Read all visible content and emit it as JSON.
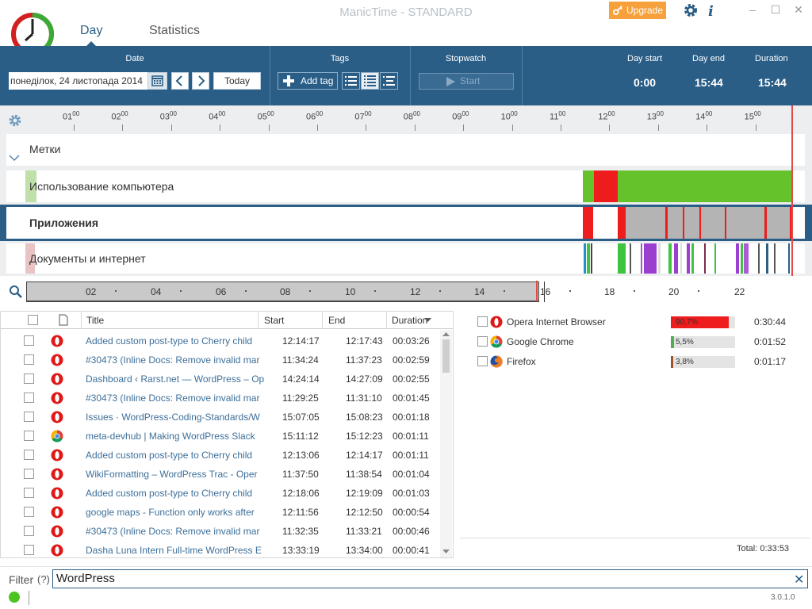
{
  "window": {
    "title": "ManicTime - STANDARD",
    "upgrade_label": "Upgrade"
  },
  "tabs": {
    "day": "Day",
    "statistics": "Statistics"
  },
  "toolbar": {
    "date_group": "Date",
    "date_value": "понеділок, 24 листопада 2014",
    "today_label": "Today",
    "tags_group": "Tags",
    "add_tag_label": "Add tag",
    "stopwatch_group": "Stopwatch",
    "start_label": "Start",
    "day_start_label": "Day start",
    "day_start_value": "0:00",
    "day_end_label": "Day end",
    "day_end_value": "15:44",
    "duration_label": "Duration",
    "duration_value": "15:44"
  },
  "timeline": {
    "hours": [
      "01",
      "02",
      "03",
      "04",
      "05",
      "06",
      "07",
      "08",
      "09",
      "10",
      "11",
      "12",
      "13",
      "14",
      "15"
    ],
    "hour_suffix": "00",
    "rows": {
      "tags": "Метки",
      "computer": "Использование компьютера",
      "apps": "Приложения",
      "docs": "Документы и интернет"
    }
  },
  "overview": {
    "labels": [
      "02",
      "04",
      "06",
      "08",
      "10",
      "12",
      "14",
      "16",
      "18",
      "20",
      "22"
    ]
  },
  "table": {
    "headers": {
      "title": "Title",
      "start": "Start",
      "end": "End",
      "duration": "Duration"
    },
    "rows": [
      {
        "icon": "opera-icon",
        "title": "Added custom post-type to Cherry child",
        "start": "12:14:17",
        "end": "12:17:43",
        "duration": "00:03:26"
      },
      {
        "icon": "opera-icon",
        "title": "#30473 (Inline Docs: Remove invalid mar",
        "start": "11:34:24",
        "end": "11:37:23",
        "duration": "00:02:59"
      },
      {
        "icon": "opera-icon",
        "title": "Dashboard ‹ Rarst.net — WordPress – Op",
        "start": "14:24:14",
        "end": "14:27:09",
        "duration": "00:02:55"
      },
      {
        "icon": "opera-icon",
        "title": "#30473 (Inline Docs: Remove invalid mar",
        "start": "11:29:25",
        "end": "11:31:10",
        "duration": "00:01:45"
      },
      {
        "icon": "opera-icon",
        "title": "Issues · WordPress-Coding-Standards/W",
        "start": "15:07:05",
        "end": "15:08:23",
        "duration": "00:01:18"
      },
      {
        "icon": "chrome-icon",
        "title": "meta-devhub | Making WordPress Slack",
        "start": "15:11:12",
        "end": "15:12:23",
        "duration": "00:01:11"
      },
      {
        "icon": "opera-icon",
        "title": "Added custom post-type to Cherry child",
        "start": "12:13:06",
        "end": "12:14:17",
        "duration": "00:01:11"
      },
      {
        "icon": "opera-icon",
        "title": "WikiFormatting – WordPress Trac - Oper",
        "start": "11:37:50",
        "end": "11:38:54",
        "duration": "00:01:04"
      },
      {
        "icon": "opera-icon",
        "title": "Added custom post-type to Cherry child",
        "start": "12:18:06",
        "end": "12:19:09",
        "duration": "00:01:03"
      },
      {
        "icon": "opera-icon",
        "title": "google maps - Function only works after",
        "start": "12:11:56",
        "end": "12:12:50",
        "duration": "00:00:54"
      },
      {
        "icon": "opera-icon",
        "title": "#30473 (Inline Docs: Remove invalid mar",
        "start": "11:32:35",
        "end": "11:33:21",
        "duration": "00:00:46"
      },
      {
        "icon": "opera-icon",
        "title": "Dasha Luna Intern Full-time WordPress E",
        "start": "13:33:19",
        "end": "13:34:00",
        "duration": "00:00:41"
      }
    ]
  },
  "apps": {
    "items": [
      {
        "name": "Opera Internet Browser",
        "icon": "opera-icon",
        "percent_label": "90,7%",
        "fraction": 0.907,
        "color": "#ee1c1c",
        "time": "0:30:44"
      },
      {
        "name": "Google Chrome",
        "icon": "chrome-icon",
        "percent_label": "5,5%",
        "fraction": 0.055,
        "color": "#4caf50",
        "time": "0:01:52"
      },
      {
        "name": "Firefox",
        "icon": "firefox-icon",
        "percent_label": "3,8%",
        "fraction": 0.038,
        "color": "#a0522d",
        "time": "0:01:17"
      }
    ],
    "total": "Total: 0:33:53"
  },
  "filter": {
    "label": "Filter",
    "help": "(?)",
    "value": "WordPress",
    "clear": "✕"
  },
  "status": {
    "version": "3.0.1.0"
  }
}
